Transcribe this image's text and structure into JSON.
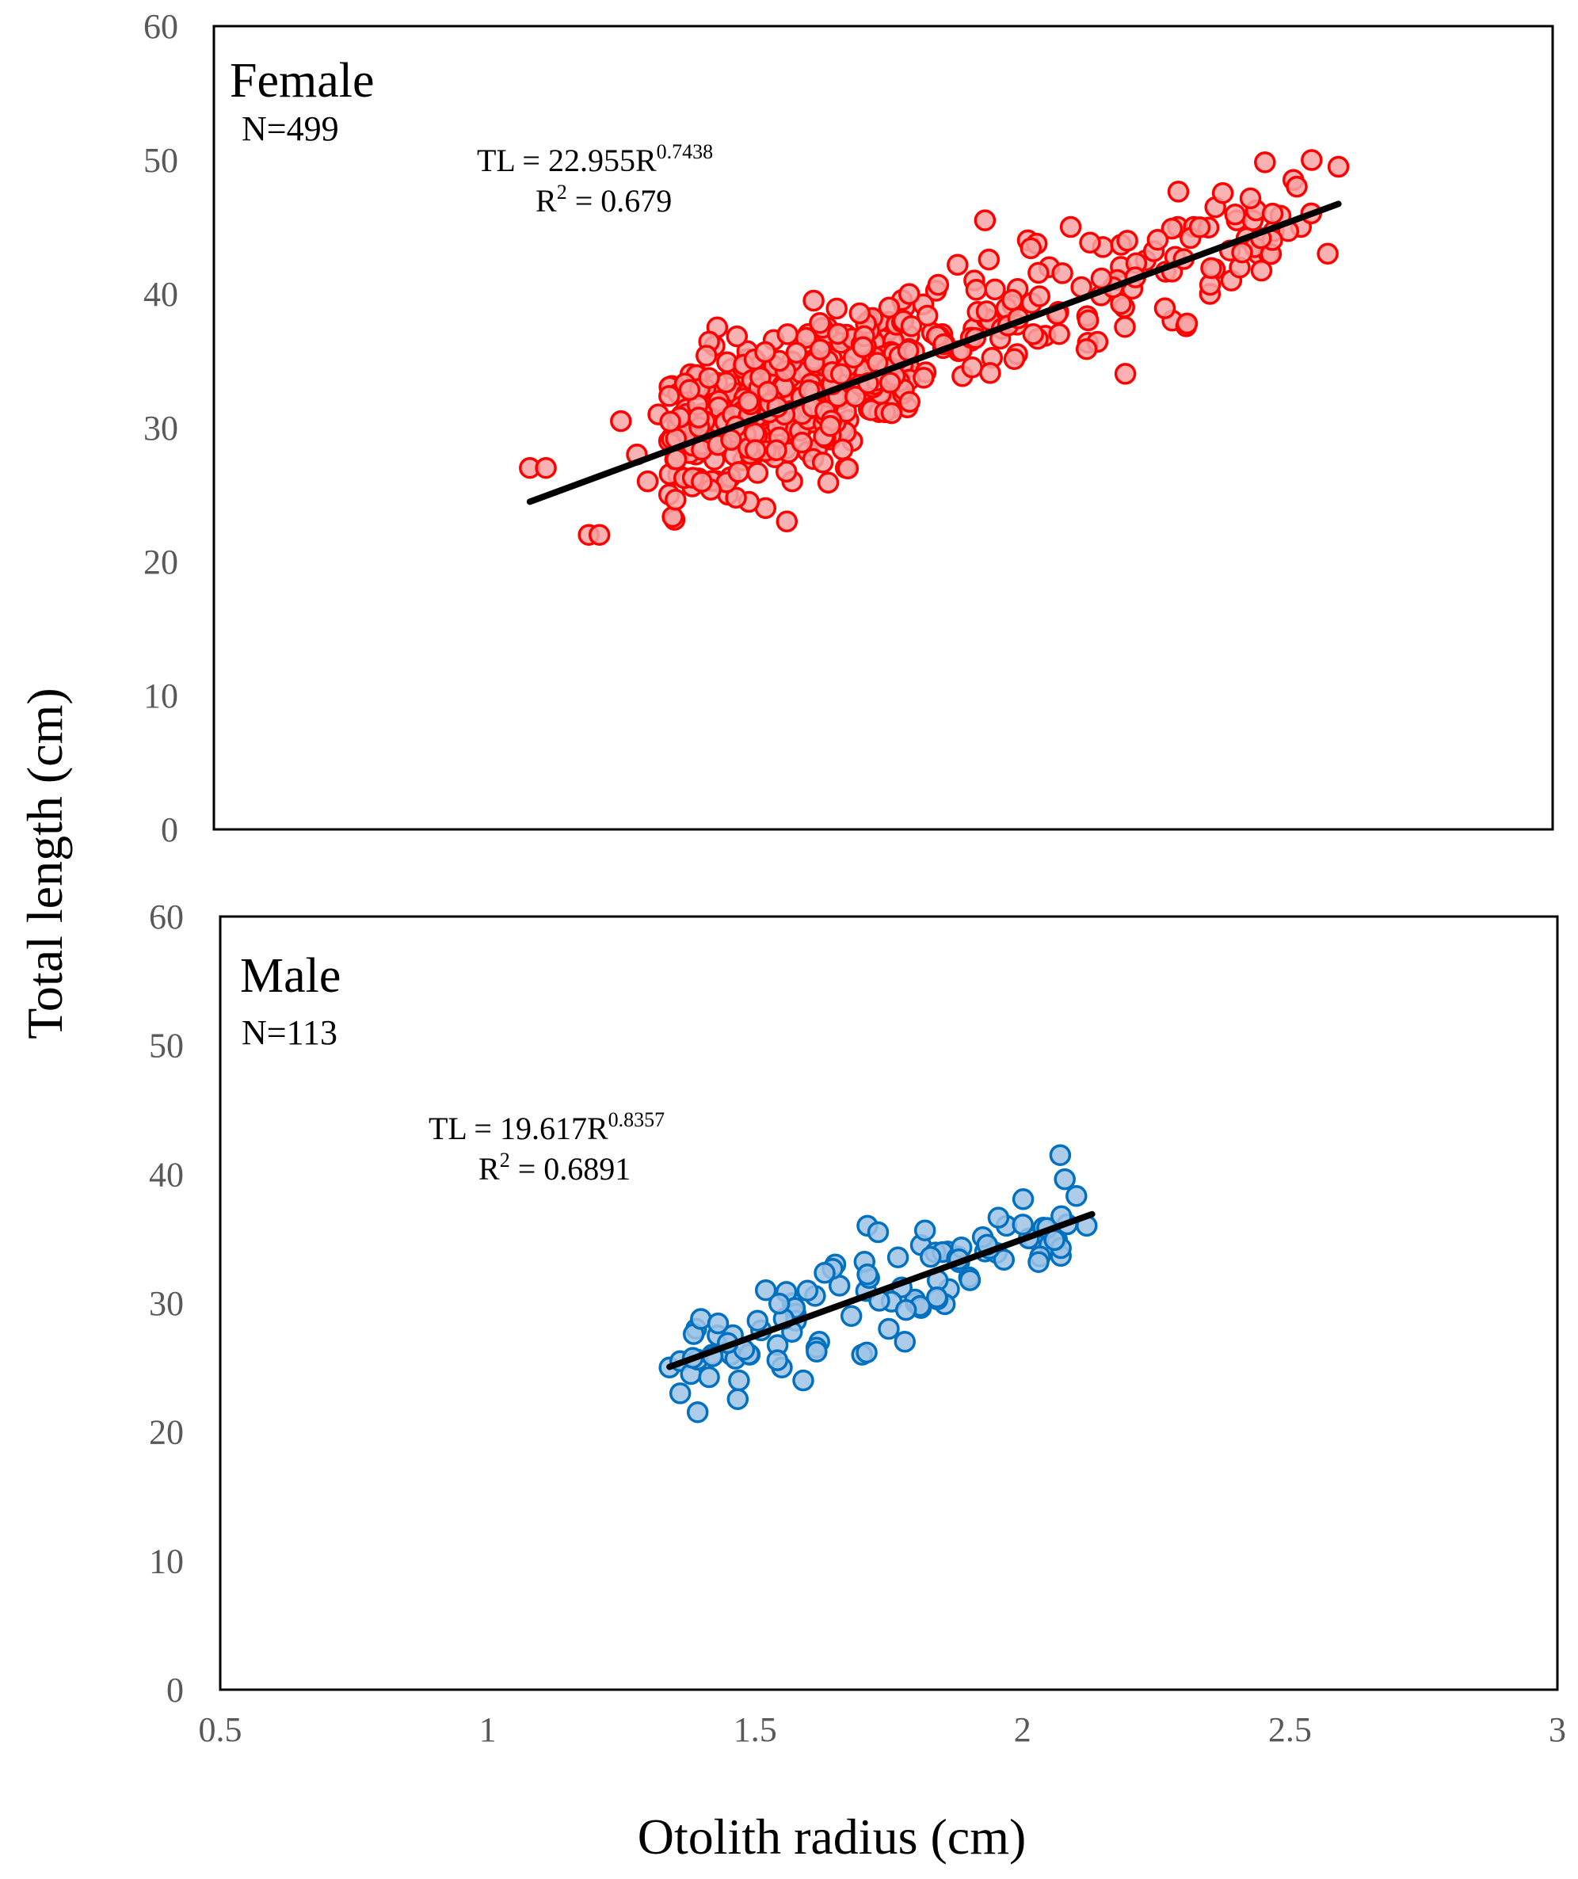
{
  "chart_data": [
    {
      "type": "scatter",
      "panel": "female",
      "title": "Female",
      "n_label": "N=499",
      "equation": {
        "prefix": "TL = 22.955R",
        "exponent": "0.7438",
        "r2_prefix": "R",
        "r2_exponent": "2",
        "r2_value": " = 0.679"
      },
      "fit": {
        "a": 22.955,
        "b": 0.7438,
        "x_range": [
          1.09,
          2.6
        ]
      },
      "xlim": [
        0.5,
        3
      ],
      "ylim": [
        0,
        60
      ],
      "yticks": [
        0,
        10,
        20,
        30,
        40,
        50,
        60
      ],
      "marker_color": "#FF0000",
      "marker_fill": "#F8A3A3",
      "line_color": "#000000",
      "n": 499,
      "points_sample": [
        [
          1.09,
          27.0
        ],
        [
          1.12,
          27.0
        ],
        [
          1.2,
          22.0
        ],
        [
          1.22,
          22.0
        ],
        [
          1.26,
          30.5
        ],
        [
          1.29,
          28.0
        ],
        [
          1.31,
          26.0
        ],
        [
          1.33,
          31.0
        ],
        [
          1.35,
          29.0
        ],
        [
          1.39,
          34.0
        ],
        [
          1.4,
          28.0
        ],
        [
          1.44,
          37.5
        ],
        [
          1.44,
          26.0
        ],
        [
          1.46,
          25.0
        ],
        [
          1.5,
          35.0
        ],
        [
          1.53,
          24.0
        ],
        [
          1.57,
          23.0
        ],
        [
          1.58,
          26.0
        ],
        [
          1.61,
          37.0
        ],
        [
          1.62,
          39.5
        ],
        [
          1.68,
          27.0
        ],
        [
          1.72,
          36.0
        ],
        [
          1.79,
          39.0
        ],
        [
          1.86,
          37.0
        ],
        [
          1.92,
          41.0
        ],
        [
          1.94,
          45.5
        ],
        [
          2.0,
          35.5
        ],
        [
          2.02,
          44.0
        ],
        [
          2.06,
          42.0
        ],
        [
          2.1,
          45.0
        ],
        [
          2.12,
          40.5
        ],
        [
          2.16,
          43.5
        ],
        [
          2.2,
          39.0
        ],
        [
          2.24,
          42.5
        ],
        [
          2.29,
          38.0
        ],
        [
          2.3,
          45.0
        ],
        [
          2.33,
          45.0
        ],
        [
          2.36,
          40.0
        ],
        [
          2.4,
          41.0
        ],
        [
          2.41,
          45.5
        ],
        [
          2.44,
          45.5
        ],
        [
          2.45,
          43.0
        ],
        [
          2.47,
          43.0
        ],
        [
          2.53,
          45.0
        ],
        [
          2.55,
          50.0
        ],
        [
          2.58,
          43.0
        ],
        [
          2.6,
          49.5
        ]
      ]
    },
    {
      "type": "scatter",
      "panel": "male",
      "title": "Male",
      "n_label": "N=113",
      "equation": {
        "prefix": "TL = 19.617R",
        "exponent": "0.8357",
        "r2_prefix": "R",
        "r2_exponent": "2",
        "r2_value": " = 0.6891"
      },
      "fit": {
        "a": 19.617,
        "b": 0.8357,
        "x_range": [
          1.34,
          2.13
        ]
      },
      "xlim": [
        0.5,
        3
      ],
      "ylim": [
        0,
        60
      ],
      "xticks": [
        0.5,
        1,
        1.5,
        2,
        2.5,
        3
      ],
      "yticks": [
        0,
        10,
        20,
        30,
        40,
        50,
        60
      ],
      "marker_color": "#0070C0",
      "marker_fill": "#9DC3E6",
      "line_color": "#000000",
      "n": 113,
      "points_sample": [
        [
          1.34,
          25.0
        ],
        [
          1.36,
          23.0
        ],
        [
          1.36,
          25.5
        ],
        [
          1.38,
          24.5
        ],
        [
          1.39,
          28.0
        ],
        [
          1.42,
          26.0
        ],
        [
          1.43,
          27.5
        ],
        [
          1.47,
          24.0
        ],
        [
          1.49,
          26.0
        ],
        [
          1.52,
          31.0
        ],
        [
          1.55,
          25.0
        ],
        [
          1.57,
          30.0
        ],
        [
          1.59,
          24.0
        ],
        [
          1.62,
          27.0
        ],
        [
          1.65,
          33.0
        ],
        [
          1.68,
          29.0
        ],
        [
          1.7,
          26.0
        ],
        [
          1.71,
          36.0
        ],
        [
          1.73,
          35.5
        ],
        [
          1.75,
          28.0
        ],
        [
          1.78,
          27.0
        ],
        [
          1.81,
          34.5
        ],
        [
          1.8,
          30.0
        ],
        [
          1.86,
          34.0
        ],
        [
          1.9,
          32.0
        ],
        [
          1.93,
          34.0
        ],
        [
          1.97,
          36.0
        ],
        [
          2.02,
          35.0
        ],
        [
          2.05,
          34.5
        ],
        [
          2.12,
          36.0
        ]
      ]
    }
  ],
  "ylabel": "Total length (cm)",
  "xlabel": "Otolith radius (cm)"
}
